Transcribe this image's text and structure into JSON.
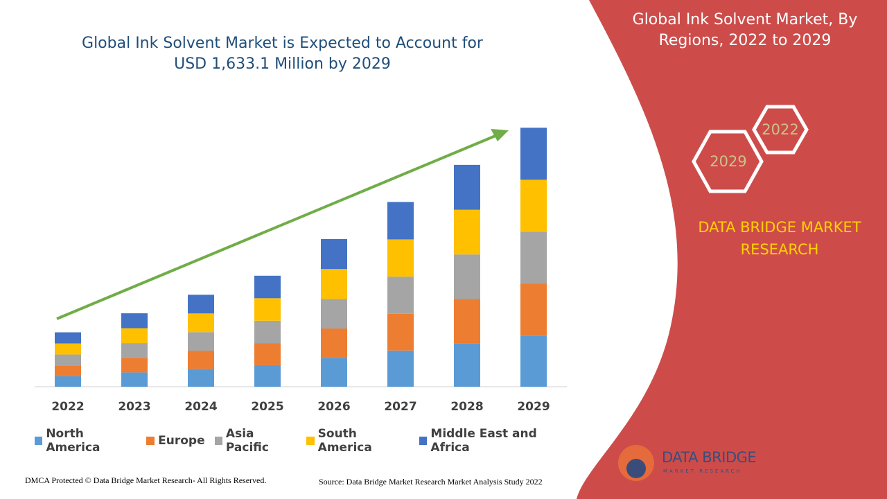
{
  "chart_data": {
    "type": "bar",
    "stacked": true,
    "title": "Global Ink Solvent Market is Expected to Account for USD 1,633.1 Million by 2029",
    "categories": [
      "2022",
      "2023",
      "2024",
      "2025",
      "2026",
      "2027",
      "2028",
      "2029"
    ],
    "series": [
      {
        "name": "North America",
        "color": "#5b9bd5",
        "values": [
          66,
          90,
          112,
          136,
          182,
          228,
          274,
          322
        ]
      },
      {
        "name": "Europe",
        "color": "#ed7d31",
        "values": [
          68,
          92,
          115,
          139,
          185,
          232,
          279,
          327
        ]
      },
      {
        "name": "Asia Pacific",
        "color": "#a5a5a5",
        "values": [
          69,
          93,
          117,
          141,
          187,
          234,
          281,
          328
        ]
      },
      {
        "name": "South America",
        "color": "#ffc000",
        "values": [
          70,
          94,
          118,
          142,
          188,
          235,
          282,
          328
        ]
      },
      {
        "name": "Middle East and Africa",
        "color": "#4472c4",
        "values": [
          70,
          94,
          118,
          142,
          189,
          236,
          283,
          328
        ]
      }
    ],
    "ylim": [
      0,
      1700
    ]
  },
  "panel": {
    "title": "Global Ink Solvent Market, By Regions, 2022 to 2029",
    "hex_labels": [
      "2022",
      "2029"
    ],
    "brand": "DATA BRIDGE MARKET RESEARCH"
  },
  "logo": {
    "name": "DATA BRIDGE",
    "tagline": "MARKET RESEARCH"
  },
  "footer": {
    "copyright": "DMCA Protected © Data Bridge Market Research- All Rights Reserved.",
    "source": "Source: Data Bridge Market Research Market Analysis Study 2022"
  }
}
